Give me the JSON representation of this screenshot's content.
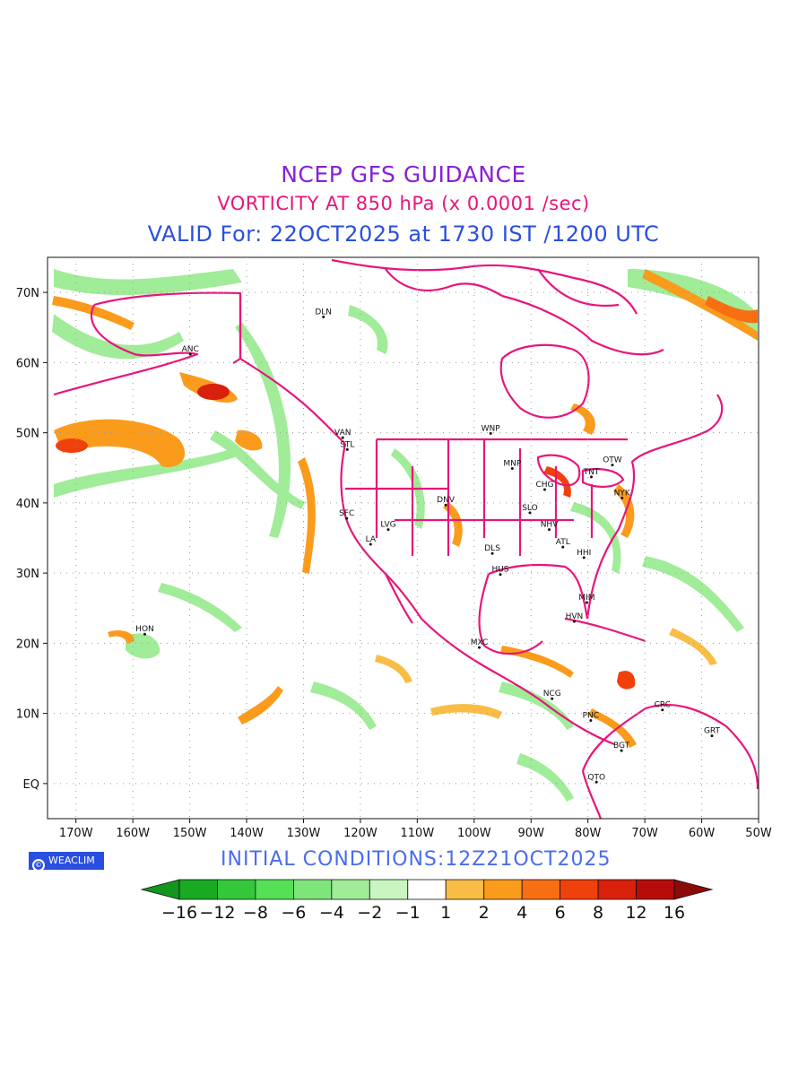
{
  "header": {
    "title": "NCEP GFS GUIDANCE",
    "subtitle": "VORTICITY AT 850 hPa (x 0.0001 /sec)",
    "valid": "VALID For: 22OCT2025 at 1730 IST /1200 UTC"
  },
  "footer": {
    "brand": "WEACLIM",
    "initial_conditions": "INITIAL CONDITIONS:12Z21OCT2025"
  },
  "axes": {
    "lat_labels": [
      "70N",
      "60N",
      "50N",
      "40N",
      "30N",
      "20N",
      "10N",
      "EQ"
    ],
    "lon_labels": [
      "170W",
      "160W",
      "150W",
      "140W",
      "130W",
      "120W",
      "110W",
      "100W",
      "90W",
      "80W",
      "70W",
      "60W",
      "50W"
    ]
  },
  "stations": [
    {
      "code": "DLN",
      "lat": 66.5,
      "lon": -126.5
    },
    {
      "code": "ANC",
      "lat": 61.2,
      "lon": -149.9
    },
    {
      "code": "VAN",
      "lat": 49.3,
      "lon": -123.1
    },
    {
      "code": "STL",
      "lat": 47.6,
      "lon": -122.3
    },
    {
      "code": "WNP",
      "lat": 49.9,
      "lon": -97.1
    },
    {
      "code": "MNP",
      "lat": 44.9,
      "lon": -93.3
    },
    {
      "code": "CHG",
      "lat": 41.9,
      "lon": -87.6
    },
    {
      "code": "TNT",
      "lat": 43.7,
      "lon": -79.4
    },
    {
      "code": "OTW",
      "lat": 45.4,
      "lon": -75.7
    },
    {
      "code": "NYK",
      "lat": 40.7,
      "lon": -74.0
    },
    {
      "code": "DNV",
      "lat": 39.7,
      "lon": -105.0
    },
    {
      "code": "SFC",
      "lat": 37.8,
      "lon": -122.4
    },
    {
      "code": "LVG",
      "lat": 36.2,
      "lon": -115.1
    },
    {
      "code": "LA",
      "lat": 34.1,
      "lon": -118.2
    },
    {
      "code": "SLO",
      "lat": 38.6,
      "lon": -90.2
    },
    {
      "code": "NHV",
      "lat": 36.2,
      "lon": -86.8
    },
    {
      "code": "ATL",
      "lat": 33.7,
      "lon": -84.4
    },
    {
      "code": "HHI",
      "lat": 32.2,
      "lon": -80.7
    },
    {
      "code": "DLS",
      "lat": 32.8,
      "lon": -96.8
    },
    {
      "code": "HUS",
      "lat": 29.8,
      "lon": -95.4
    },
    {
      "code": "MIM",
      "lat": 25.8,
      "lon": -80.2
    },
    {
      "code": "HVN",
      "lat": 23.1,
      "lon": -82.4
    },
    {
      "code": "HON",
      "lat": 21.3,
      "lon": -157.9
    },
    {
      "code": "MXC",
      "lat": 19.4,
      "lon": -99.1
    },
    {
      "code": "NCG",
      "lat": 12.1,
      "lon": -86.3
    },
    {
      "code": "PNC",
      "lat": 9.0,
      "lon": -79.5
    },
    {
      "code": "CRC",
      "lat": 10.5,
      "lon": -66.9
    },
    {
      "code": "GRT",
      "lat": 6.8,
      "lon": -58.2
    },
    {
      "code": "BGT",
      "lat": 4.7,
      "lon": -74.1
    },
    {
      "code": "QTO",
      "lat": 0.2,
      "lon": -78.5
    }
  ],
  "colorbar": {
    "labels": [
      "−16",
      "−12",
      "−8",
      "−6",
      "−4",
      "−2",
      "−1",
      "1",
      "2",
      "4",
      "6",
      "8",
      "12",
      "16"
    ],
    "colors": [
      "#12961e",
      "#1aa922",
      "#33c83a",
      "#55e155",
      "#7de57a",
      "#a0ec98",
      "#c8f5c0",
      "#ffffff",
      "#f8bd46",
      "#fb9b1c",
      "#f76f12",
      "#f0400c",
      "#d8200a",
      "#b60c0c",
      "#8c0a0a"
    ]
  },
  "map_colors": {
    "boundary": "#e8157a",
    "negative_vorticity": "#a0ec98",
    "positive_vorticity": "#fb9b1c",
    "strong_positive": "#f0400c"
  }
}
